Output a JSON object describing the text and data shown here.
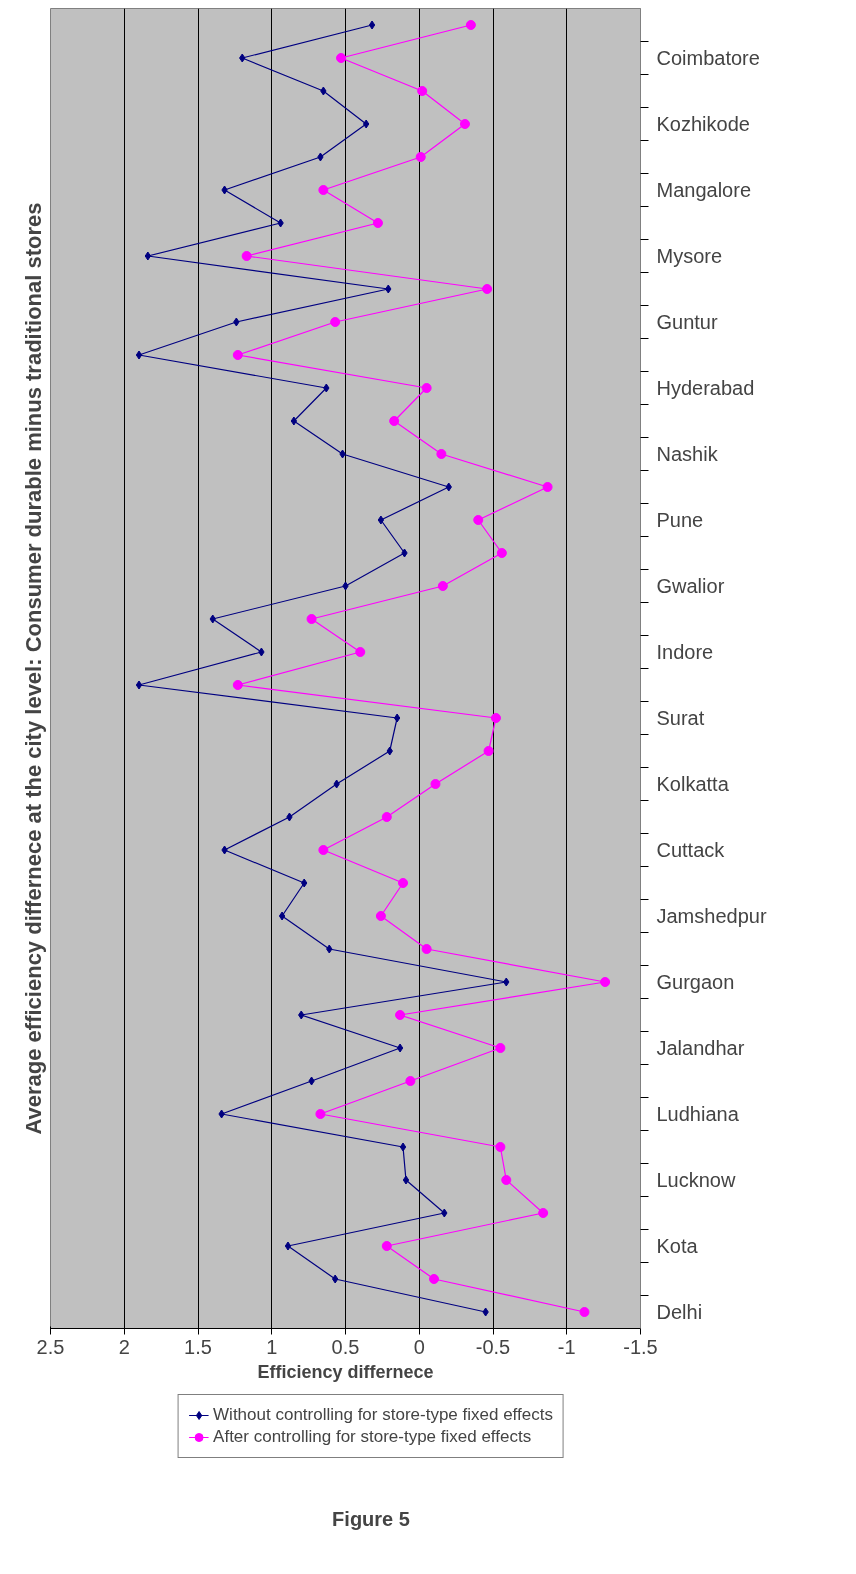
{
  "chart_data": {
    "type": "line",
    "orientation": "horizontal",
    "title": "Average efficiency differnece at the city level: Consumer durable minus traditional stores",
    "xlabel": "Efficiency differnece",
    "categories": [
      null,
      "Coimbatore",
      null,
      "Kozhikode",
      null,
      "Mangalore",
      null,
      "Mysore",
      null,
      "Guntur",
      null,
      "Hyderabad",
      null,
      "Nashik",
      null,
      "Pune",
      null,
      "Gwalior",
      null,
      "Indore",
      null,
      "Surat",
      null,
      "Kolkatta",
      null,
      "Cuttack",
      null,
      "Jamshedpur",
      null,
      "Gurgaon",
      null,
      "Jalandhar",
      null,
      "Ludhiana",
      null,
      "Lucknow",
      null,
      "Kota",
      null,
      "Delhi"
    ],
    "series": [
      {
        "name": "Without controlling for store-type fixed effects",
        "color": "#000080",
        "marker": "diamond",
        "values": [
          0.32,
          1.2,
          0.65,
          0.36,
          0.67,
          1.32,
          0.94,
          1.84,
          0.21,
          1.24,
          1.9,
          0.63,
          0.85,
          0.52,
          -0.2,
          0.26,
          0.1,
          0.5,
          1.4,
          1.07,
          1.9,
          0.15,
          0.2,
          0.56,
          0.88,
          1.32,
          0.78,
          0.93,
          0.61,
          -0.59,
          0.8,
          0.13,
          0.73,
          1.34,
          0.11,
          0.09,
          -0.17,
          0.89,
          0.57,
          -0.45
        ]
      },
      {
        "name": "After controlling for store-type fixed effects",
        "color": "#ff00ff",
        "marker": "circle",
        "values": [
          -0.35,
          0.53,
          -0.02,
          -0.31,
          -0.01,
          0.65,
          0.28,
          1.17,
          -0.46,
          0.57,
          1.23,
          -0.05,
          0.17,
          -0.15,
          -0.87,
          -0.4,
          -0.56,
          -0.16,
          0.73,
          0.4,
          1.23,
          -0.52,
          -0.47,
          -0.11,
          0.22,
          0.65,
          0.11,
          0.26,
          -0.05,
          -1.26,
          0.13,
          -0.55,
          0.06,
          0.67,
          -0.55,
          -0.59,
          -0.84,
          0.22,
          -0.1,
          -1.12
        ]
      }
    ],
    "xlim": [
      2.5,
      -1.5
    ],
    "xticks": [
      2.5,
      2,
      1.5,
      1,
      0.5,
      0,
      -0.5,
      -1,
      -1.5
    ],
    "grid": "x",
    "legend": "bottom",
    "line_style": "solid",
    "annotations": [
      "Figure 5"
    ]
  }
}
